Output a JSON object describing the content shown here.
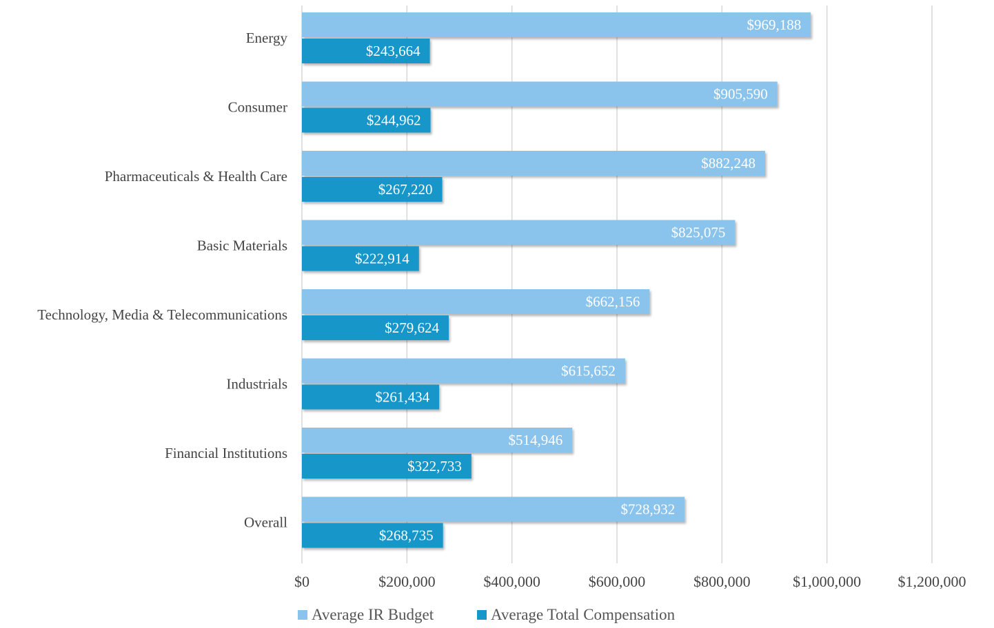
{
  "chart_data": {
    "type": "bar",
    "orientation": "horizontal",
    "categories": [
      "Energy",
      "Consumer",
      "Pharmaceuticals & Health Care",
      "Basic Materials",
      "Technology, Media & Telecommunications",
      "Industrials",
      "Financial Institutions",
      "Overall"
    ],
    "series": [
      {
        "name": "Average IR Budget",
        "color": "#8ac3eb",
        "values": [
          969188,
          905590,
          882248,
          825075,
          662156,
          615652,
          514946,
          728932
        ],
        "labels": [
          "$969,188",
          "$905,590",
          "$882,248",
          "$825,075",
          "$662,156",
          "$615,652",
          "$514,946",
          "$728,932"
        ]
      },
      {
        "name": "Average Total Compensation",
        "color": "#1796c9",
        "values": [
          243664,
          244962,
          267220,
          222914,
          279624,
          261434,
          322733,
          268735
        ],
        "labels": [
          "$243,664",
          "$244,962",
          "$267,220",
          "$222,914",
          "$279,624",
          "$261,434",
          "$322,733",
          "$268,735"
        ]
      }
    ],
    "xlim": [
      0,
      1200000
    ],
    "x_ticks": [
      0,
      200000,
      400000,
      600000,
      800000,
      1000000,
      1200000
    ],
    "x_tick_labels": [
      "$0",
      "$200,000",
      "$400,000",
      "$600,000",
      "$800,000",
      "$1,000,000",
      "$1,200,000"
    ],
    "grid": "vertical",
    "legend_position": "bottom",
    "title": "",
    "xlabel": "",
    "ylabel": ""
  }
}
